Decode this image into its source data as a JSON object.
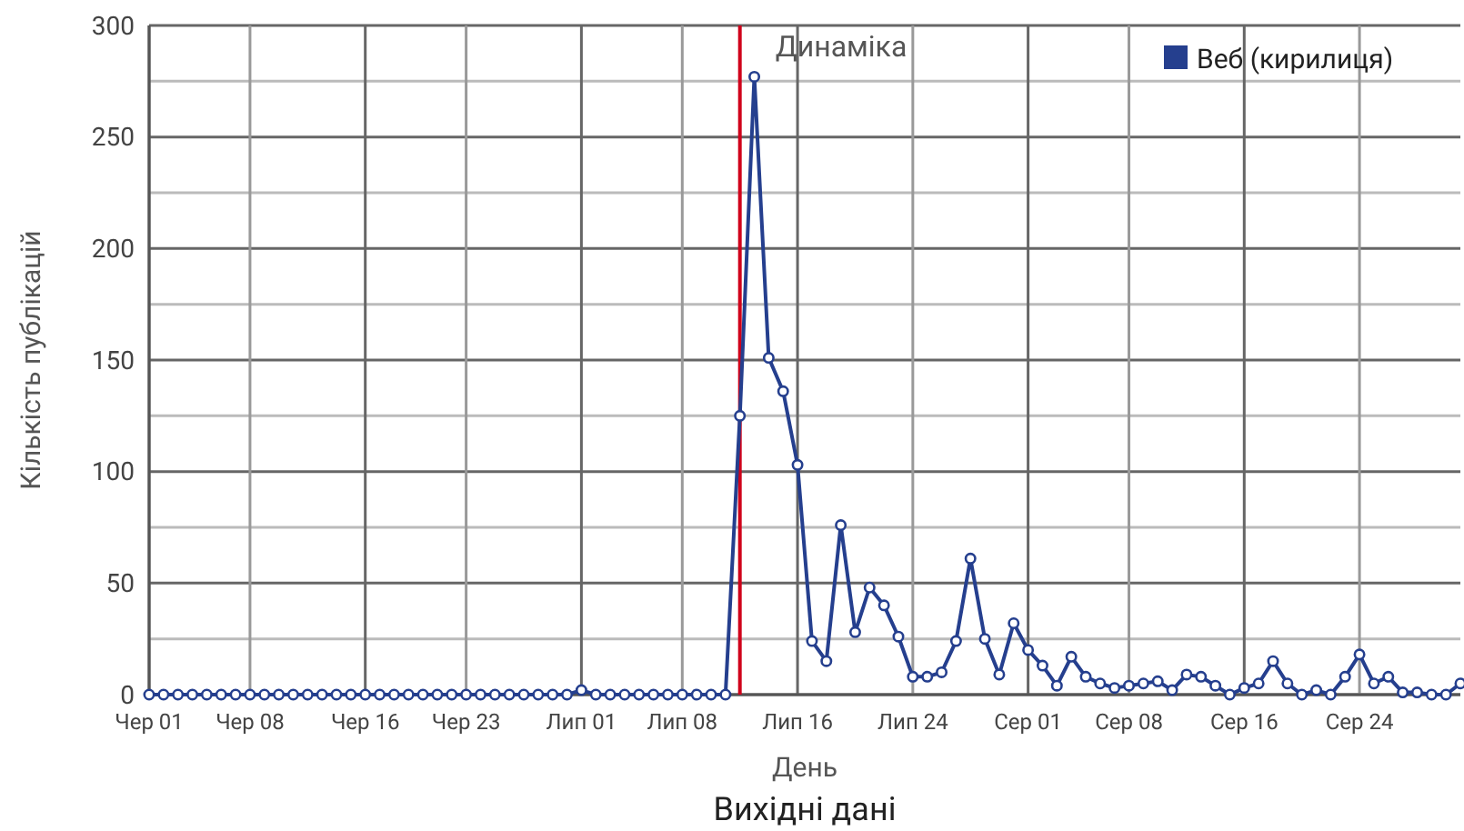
{
  "chart_data": {
    "type": "line",
    "title": "Динаміка",
    "xlabel": "День",
    "ylabel": "Кількість публікацій",
    "annotations": [
      "Вихідні дані"
    ],
    "x": [
      "--06-01",
      "--06-02",
      "--06-03",
      "--06-04",
      "--06-05",
      "--06-06",
      "--06-07",
      "--06-08",
      "--06-09",
      "--06-10",
      "--06-11",
      "--06-12",
      "--06-13",
      "--06-14",
      "--06-15",
      "--06-16",
      "--06-17",
      "--06-18",
      "--06-19",
      "--06-20",
      "--06-21",
      "--06-22",
      "--06-23",
      "--06-24",
      "--06-25",
      "--06-26",
      "--06-27",
      "--06-28",
      "--06-29",
      "--06-30",
      "--07-01",
      "--07-02",
      "--07-03",
      "--07-04",
      "--07-05",
      "--07-06",
      "--07-07",
      "--07-08",
      "--07-09",
      "--07-10",
      "--07-11",
      "--07-12",
      "--07-13",
      "--07-14",
      "--07-15",
      "--07-16",
      "--07-17",
      "--07-18",
      "--07-19",
      "--07-20",
      "--07-21",
      "--07-22",
      "--07-23",
      "--07-24",
      "--07-25",
      "--07-26",
      "--07-27",
      "--07-28",
      "--07-29",
      "--07-30",
      "--07-31",
      "--08-01",
      "--08-02",
      "--08-03",
      "--08-04",
      "--08-05",
      "--08-06",
      "--08-07",
      "--08-08",
      "--08-09",
      "--08-10",
      "--08-11",
      "--08-12",
      "--08-13",
      "--08-14",
      "--08-15",
      "--08-16",
      "--08-17",
      "--08-18",
      "--08-19",
      "--08-20",
      "--08-21",
      "--08-22",
      "--08-23",
      "--08-24",
      "--08-25",
      "--08-26",
      "--08-27",
      "--08-28",
      "--08-29",
      "--08-30",
      "--08-31"
    ],
    "series": [
      {
        "name": "Веб (кирилиця)",
        "color": "#253f8e",
        "values": [
          0,
          0,
          0,
          0,
          0,
          0,
          0,
          0,
          0,
          0,
          0,
          0,
          0,
          0,
          0,
          0,
          0,
          0,
          0,
          0,
          0,
          0,
          0,
          0,
          0,
          0,
          0,
          0,
          0,
          0,
          2,
          0,
          0,
          0,
          0,
          0,
          0,
          0,
          0,
          0,
          0,
          125,
          277,
          151,
          136,
          103,
          24,
          15,
          76,
          28,
          48,
          40,
          26,
          8,
          8,
          10,
          24,
          61,
          25,
          9,
          32,
          20,
          13,
          4,
          17,
          8,
          5,
          3,
          4,
          5,
          6,
          2,
          9,
          8,
          4,
          0,
          3,
          5,
          15,
          5,
          0,
          2,
          0,
          8,
          18,
          5,
          8,
          1,
          1,
          0,
          0,
          5
        ]
      }
    ],
    "xlim": [
      "--06-01",
      "--08-31"
    ],
    "xticks": [
      {
        "value": "--06-01",
        "label": "Чер 01"
      },
      {
        "value": "--06-08",
        "label": "Чер 08"
      },
      {
        "value": "--06-16",
        "label": "Чер 16"
      },
      {
        "value": "--06-23",
        "label": "Чер 23"
      },
      {
        "value": "--07-01",
        "label": "Лип 01"
      },
      {
        "value": "--07-08",
        "label": "Лип 08"
      },
      {
        "value": "--07-16",
        "label": "Лип 16"
      },
      {
        "value": "--07-24",
        "label": "Лип 24"
      },
      {
        "value": "--08-01",
        "label": "Сер 01"
      },
      {
        "value": "--08-08",
        "label": "Сер 08"
      },
      {
        "value": "--08-16",
        "label": "Сер 16"
      },
      {
        "value": "--08-24",
        "label": "Сер 24"
      }
    ],
    "ylim": [
      0,
      300
    ],
    "yticks": [
      0,
      {
        "value": 25,
        "label": null
      },
      50,
      {
        "value": 75,
        "label": null
      },
      100,
      {
        "value": 125,
        "label": null
      },
      150,
      {
        "value": 175,
        "label": null
      },
      200,
      {
        "value": 225,
        "label": null
      },
      250,
      {
        "value": 275,
        "label": null
      },
      300
    ],
    "ref_lines": [
      {
        "axis": "x",
        "value": "--07-12",
        "color": "#d0021b"
      }
    ],
    "grid": true,
    "legend": "top right",
    "marker": "circle",
    "line_style": "solid"
  }
}
